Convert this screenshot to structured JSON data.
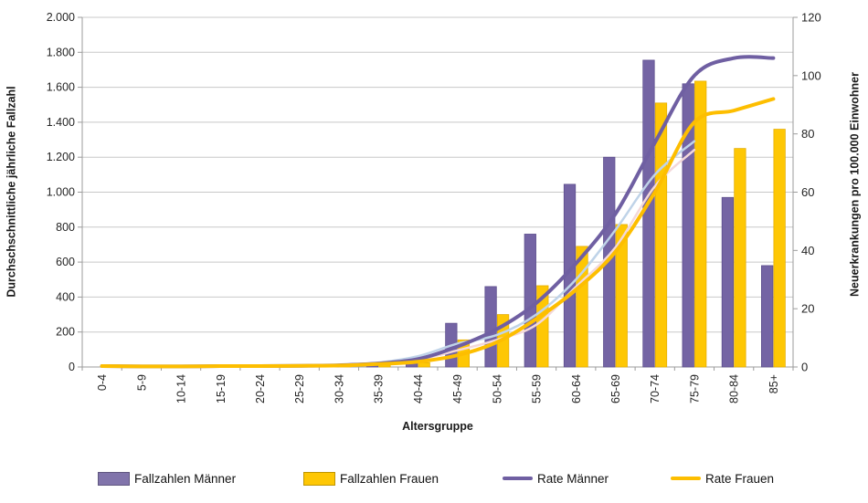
{
  "chart_data": {
    "type": "bar",
    "subtype": "combo-bar-line-dual-axis",
    "categories": [
      "0-4",
      "5-9",
      "10-14",
      "15-19",
      "20-24",
      "25-29",
      "30-34",
      "35-39",
      "40-44",
      "45-49",
      "50-54",
      "55-59",
      "60-64",
      "65-69",
      "70-74",
      "75-79",
      "80-84",
      "85+"
    ],
    "series": [
      {
        "name": "Fallzahlen Männer",
        "type": "bar",
        "axis": "left",
        "color": "#7464a4",
        "border": "#5c4d8c",
        "values": [
          2,
          1,
          1,
          2,
          2,
          3,
          5,
          12,
          35,
          250,
          460,
          760,
          1045,
          1200,
          1755,
          1620,
          970,
          580
        ]
      },
      {
        "name": "Fallzahlen Frauen",
        "type": "bar",
        "axis": "left",
        "color": "#fec704",
        "border": "#e3ac00",
        "values": [
          2,
          1,
          1,
          2,
          2,
          3,
          5,
          10,
          25,
          155,
          300,
          465,
          690,
          815,
          1510,
          1635,
          1250,
          1360
        ]
      },
      {
        "name": "Rate Männer",
        "type": "line",
        "axis": "right",
        "color": "#6f5fa2",
        "width": 4,
        "values": [
          0.3,
          0.2,
          0.2,
          0.3,
          0.3,
          0.4,
          0.6,
          1.2,
          2.7,
          7,
          13,
          22,
          35.5,
          52.5,
          77,
          100,
          106,
          106
        ]
      },
      {
        "name": "Rate Frauen",
        "type": "line",
        "axis": "right",
        "color": "#fdbe00",
        "width": 4,
        "values": [
          0.3,
          0.2,
          0.2,
          0.3,
          0.3,
          0.4,
          0.5,
          1,
          1.8,
          4,
          8.5,
          16.5,
          26.5,
          39.5,
          60,
          84,
          88,
          92
        ]
      },
      {
        "name": "unlabeled-light-blue-line",
        "type": "line",
        "axis": "right",
        "color": "#bfd3e8",
        "width": 2.5,
        "values": [
          null,
          null,
          null,
          null,
          null,
          null,
          0.5,
          1.5,
          3.7,
          8,
          11,
          18,
          30,
          47,
          66,
          77.5,
          null,
          null
        ]
      },
      {
        "name": "unlabeled-light-pink-line",
        "type": "line",
        "axis": "right",
        "color": "#f3d8da",
        "width": 2.5,
        "values": [
          null,
          null,
          null,
          null,
          null,
          null,
          0.4,
          1,
          2.5,
          5.7,
          9.3,
          14.5,
          27.5,
          41,
          62,
          74.5,
          null,
          null
        ]
      }
    ],
    "left_axis": {
      "title": "Durchschschnittliche jährliche Fallzahl",
      "min": 0,
      "max": 2000,
      "step": 200,
      "tick_labels": [
        "2.000",
        "1.800",
        "1.600",
        "1.400",
        "1.200",
        "1.000",
        "800",
        "600",
        "400",
        "200",
        "0"
      ]
    },
    "right_axis": {
      "title": "Neuerkrankungen pro 100.000 Einwohner",
      "min": 0,
      "max": 120,
      "step": 20,
      "tick_labels": [
        "120",
        "100",
        "80",
        "60",
        "40",
        "20",
        "0"
      ]
    },
    "x_axis": {
      "title": "Altersgruppe"
    },
    "grid": true,
    "legend_position": "bottom",
    "legend_items": [
      {
        "label": "Fallzahlen Männer",
        "marker": "bar",
        "color": "#8174ab"
      },
      {
        "label": "Fallzahlen Frauen",
        "marker": "bar",
        "color": "#fec704"
      },
      {
        "label": "Rate Männer",
        "marker": "line",
        "color": "#6f5fa2"
      },
      {
        "label": "Rate Frauen",
        "marker": "line",
        "color": "#fdbe00"
      }
    ]
  },
  "colors": {
    "gridline": "#c8c8c8",
    "axis_line": "#9b9b9b",
    "tick_text": "#242424",
    "title_text": "#1a1a1a"
  }
}
